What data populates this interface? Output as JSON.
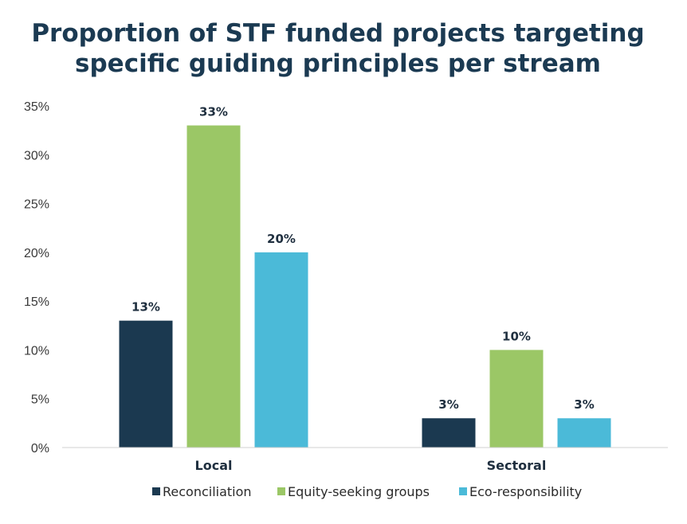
{
  "chart_data": {
    "type": "bar",
    "title_lines": [
      "Proportion of STF funded projects targeting",
      "specific guiding principles per stream"
    ],
    "categories": [
      "Local",
      "Sectoral"
    ],
    "series": [
      {
        "name": "Reconciliation",
        "values": [
          13,
          3
        ],
        "labels": [
          "13%",
          "3%"
        ],
        "color": "#1b3950"
      },
      {
        "name": "Equity-seeking groups",
        "values": [
          33,
          10
        ],
        "labels": [
          "33%",
          "10%"
        ],
        "color": "#9bc766"
      },
      {
        "name": "Eco-responsibility",
        "values": [
          20,
          3
        ],
        "labels": [
          "20%",
          "3%"
        ],
        "color": "#4bbad8"
      }
    ],
    "yticks": [
      "0%",
      "5%",
      "10%",
      "15%",
      "20%",
      "25%",
      "30%",
      "35%"
    ],
    "ylim": [
      0,
      35
    ],
    "grid": false,
    "legend": "bottom"
  }
}
